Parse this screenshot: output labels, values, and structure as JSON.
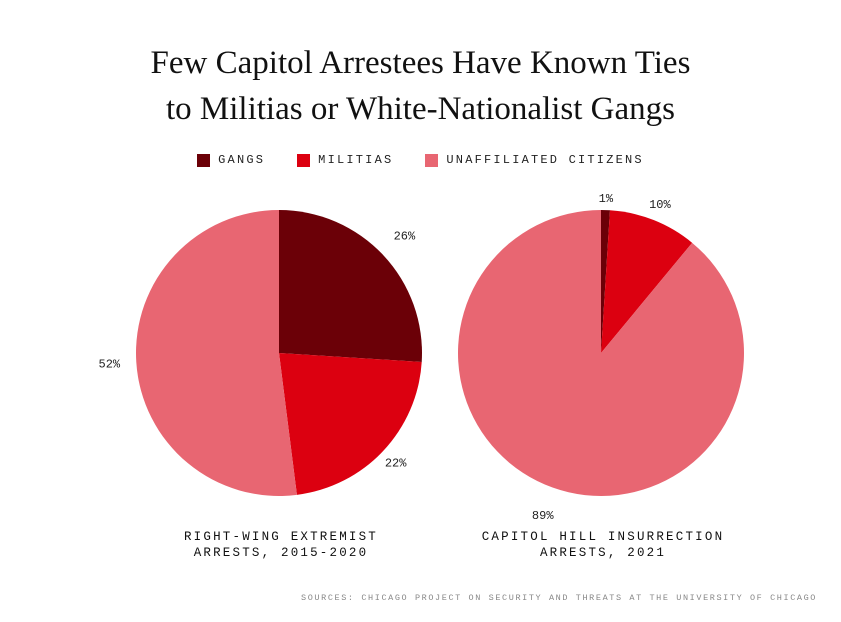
{
  "title": {
    "line1": "Few Capitol Arrestees Have Known Ties",
    "line2": "to Militias or White-Nationalist Gangs"
  },
  "source": "SOURCES: CHICAGO PROJECT ON SECURITY AND THREATS AT THE UNIVERSITY OF CHICAGO",
  "chart_data": {
    "type": "pie",
    "categories": [
      "GANGS",
      "MILITIAS",
      "UNAFFILIATED CITIZENS"
    ],
    "colors": [
      "#6b0007",
      "#dc0010",
      "#e86672"
    ],
    "legend_position": "top-center",
    "charts": [
      {
        "caption_line1": "RIGHT-WING EXTREMIST",
        "caption_line2": "ARRESTS, 2015-2020",
        "values": [
          26,
          22,
          52
        ],
        "labels": [
          "26%",
          "22%",
          "52%"
        ]
      },
      {
        "caption_line1": "CAPITOL HILL INSURRECTION",
        "caption_line2": "ARRESTS, 2021",
        "values": [
          1,
          10,
          89
        ],
        "labels": [
          "1%",
          "10%",
          "89%"
        ]
      }
    ]
  }
}
